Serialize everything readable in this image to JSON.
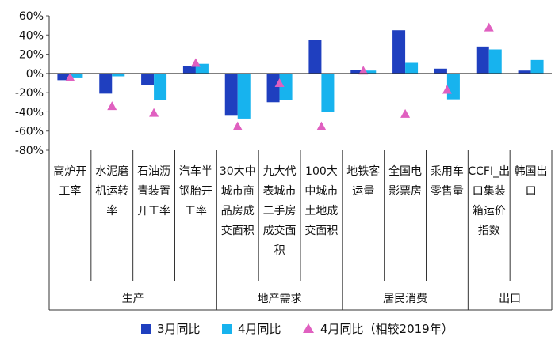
{
  "chart_data": {
    "type": "bar",
    "title": "",
    "xlabel": "",
    "ylabel": "",
    "ylim": [
      -80,
      60
    ],
    "yticks": [
      "60%",
      "40%",
      "20%",
      "0%",
      "-20%",
      "-40%",
      "-60%",
      "-80%"
    ],
    "categories": [
      "高炉开工率",
      "水泥磨机运转率",
      "石油沥青装置开工率",
      "汽车半钢胎开工率",
      "30大中城市商品房成交面积",
      "九大代表城市二手房成交面积",
      "100大中城市土地成交面积",
      "地铁客运量",
      "全国电影票房",
      "乘用车零售量",
      "CCFI_出口集装箱运价指数",
      "韩国出口"
    ],
    "groups": [
      {
        "label": "生产",
        "span": [
          0,
          3
        ]
      },
      {
        "label": "地产需求",
        "span": [
          4,
          6
        ]
      },
      {
        "label": "居民消费",
        "span": [
          7,
          9
        ]
      },
      {
        "label": "出口",
        "span": [
          10,
          11
        ]
      }
    ],
    "series": [
      {
        "name": "3月同比",
        "kind": "bar",
        "color": "#1f3fbf",
        "values": [
          -7,
          -21,
          -12,
          8,
          -44,
          -30,
          35,
          4,
          45,
          5,
          28,
          3
        ]
      },
      {
        "name": "4月同比",
        "kind": "bar",
        "color": "#17b3ee",
        "values": [
          -5,
          -3,
          -28,
          10,
          -47,
          -28,
          -40,
          3,
          11,
          -27,
          25,
          14
        ]
      },
      {
        "name": "4月同比（相较2019年）",
        "kind": "marker",
        "color": "#e060c0",
        "values": [
          -4,
          -34,
          -41,
          11,
          -55,
          -10,
          -55,
          3,
          -42,
          -17,
          48,
          null
        ]
      }
    ],
    "legend_position": "bottom"
  }
}
